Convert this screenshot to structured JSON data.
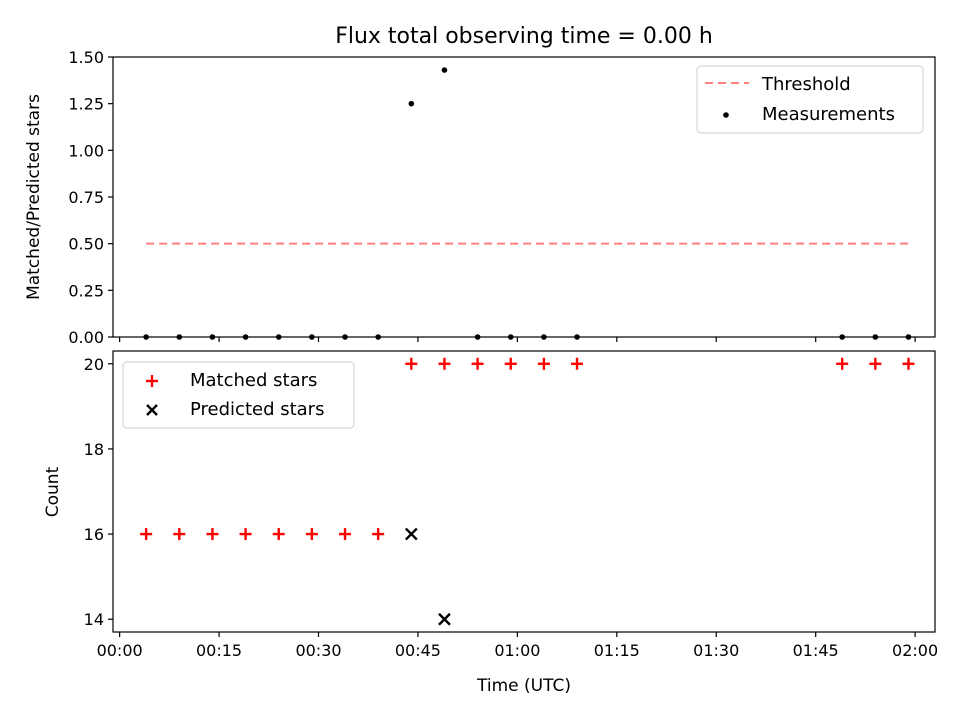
{
  "chart_data": [
    {
      "type": "scatter",
      "title": "Flux total observing time = 0.00 h",
      "xlabel": "",
      "ylabel": "Matched/Predicted stars",
      "ylim": [
        0,
        1.5
      ],
      "yticks": [
        "0.00",
        "0.25",
        "0.50",
        "0.75",
        "1.00",
        "1.25",
        "1.50"
      ],
      "legend_position": "top-right",
      "series": [
        {
          "name": "Threshold",
          "kind": "line",
          "style": "dashed",
          "color": "#ff7f7f",
          "x": [
            "00:04",
            "01:59"
          ],
          "y": [
            0.5,
            0.5
          ]
        },
        {
          "name": "Measurements",
          "kind": "scatter",
          "marker": "dot",
          "color": "#000000",
          "x": [
            "00:04",
            "00:09",
            "00:14",
            "00:19",
            "00:24",
            "00:29",
            "00:34",
            "00:39",
            "00:44",
            "00:49",
            "00:54",
            "00:59",
            "01:04",
            "01:09",
            "01:49",
            "01:54",
            "01:59"
          ],
          "y": [
            0,
            0,
            0,
            0,
            0,
            0,
            0,
            0,
            1.25,
            1.43,
            0,
            0,
            0,
            0,
            0,
            0,
            0
          ]
        }
      ]
    },
    {
      "type": "scatter",
      "title": "",
      "xlabel": "Time (UTC)",
      "ylabel": "Count",
      "ylim": [
        13.7,
        20.3
      ],
      "yticks": [
        "14",
        "16",
        "18",
        "20"
      ],
      "legend_position": "top-left",
      "series": [
        {
          "name": "Matched stars",
          "kind": "scatter",
          "marker": "plus",
          "color": "#ff0000",
          "x": [
            "00:04",
            "00:09",
            "00:14",
            "00:19",
            "00:24",
            "00:29",
            "00:34",
            "00:39",
            "00:44",
            "00:49",
            "00:54",
            "00:59",
            "01:04",
            "01:09",
            "01:49",
            "01:54",
            "01:59"
          ],
          "y": [
            16,
            16,
            16,
            16,
            16,
            16,
            16,
            16,
            20,
            20,
            20,
            20,
            20,
            20,
            20,
            20,
            20
          ]
        },
        {
          "name": "Predicted stars",
          "kind": "scatter",
          "marker": "x",
          "color": "#000000",
          "x": [
            "00:44",
            "00:49"
          ],
          "y": [
            16,
            14
          ]
        }
      ]
    }
  ],
  "x_axis": {
    "range": [
      "23:59",
      "02:03"
    ],
    "ticks": [
      "00:00",
      "00:15",
      "00:30",
      "00:45",
      "01:00",
      "01:15",
      "01:30",
      "01:45",
      "02:00"
    ]
  }
}
